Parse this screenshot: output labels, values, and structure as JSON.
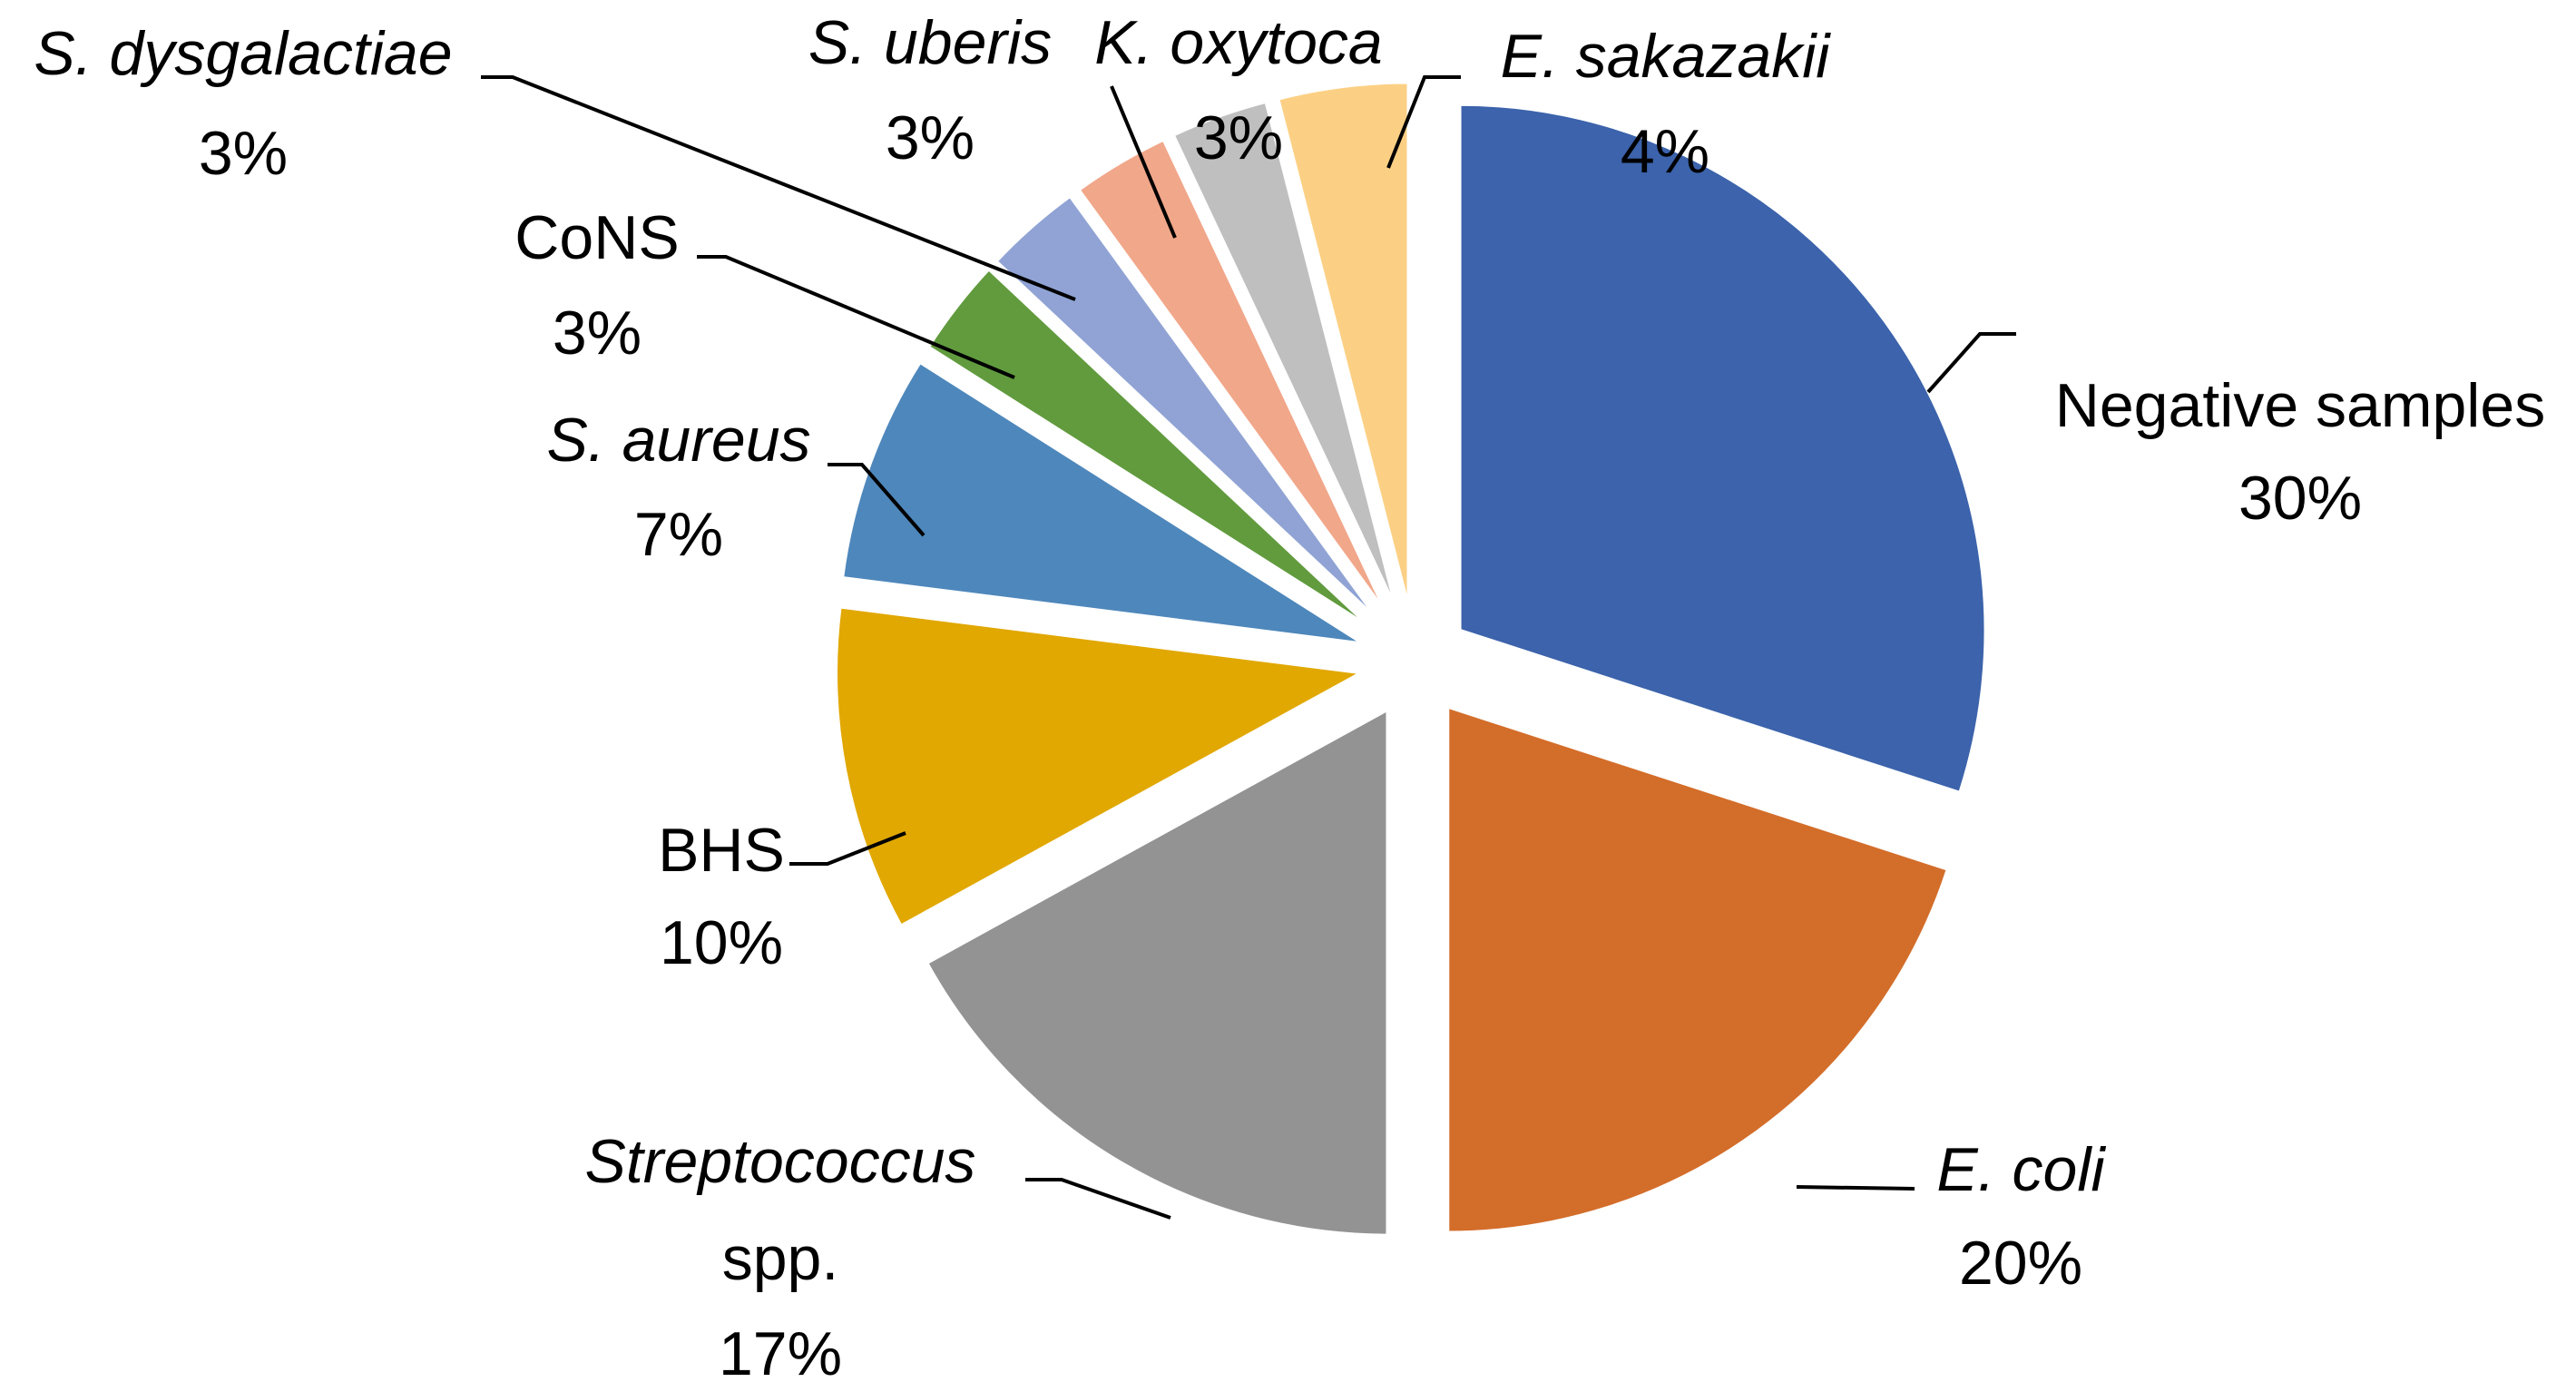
{
  "chart_data": {
    "type": "pie",
    "exploded": true,
    "start_angle_deg": 0,
    "direction": "clockwise",
    "slices": [
      {
        "name": "Negative samples",
        "pct_label": "30%",
        "value": 30,
        "color": "#3C63AB",
        "italic": false
      },
      {
        "name": "E. coli",
        "pct_label": "20%",
        "value": 20,
        "color": "#D36D2A",
        "italic": true
      },
      {
        "name": "Streptococcus",
        "name_extra": "spp.",
        "pct_label": "17%",
        "value": 17,
        "color": "#939393",
        "italic": true
      },
      {
        "name": "BHS",
        "pct_label": "10%",
        "value": 10,
        "color": "#E1A802",
        "italic": false
      },
      {
        "name": "S. aureus",
        "pct_label": "7%",
        "value": 7,
        "color": "#4E87BB",
        "italic": true
      },
      {
        "name": "CoNS",
        "pct_label": "3%",
        "value": 3,
        "color": "#619B3E",
        "italic": false
      },
      {
        "name": "S. dysgalactiae",
        "pct_label": "3%",
        "value": 3,
        "color": "#90A3D4",
        "italic": true
      },
      {
        "name": "S. uberis",
        "pct_label": "3%",
        "value": 3,
        "color": "#F1A78A",
        "italic": true
      },
      {
        "name": "K. oxytoca",
        "pct_label": "3%",
        "value": 3,
        "color": "#BFBFBF",
        "italic": true
      },
      {
        "name": "E. sakazakii",
        "pct_label": "4%",
        "value": 4,
        "color": "#FCD084",
        "italic": true
      }
    ],
    "legend": "none"
  }
}
